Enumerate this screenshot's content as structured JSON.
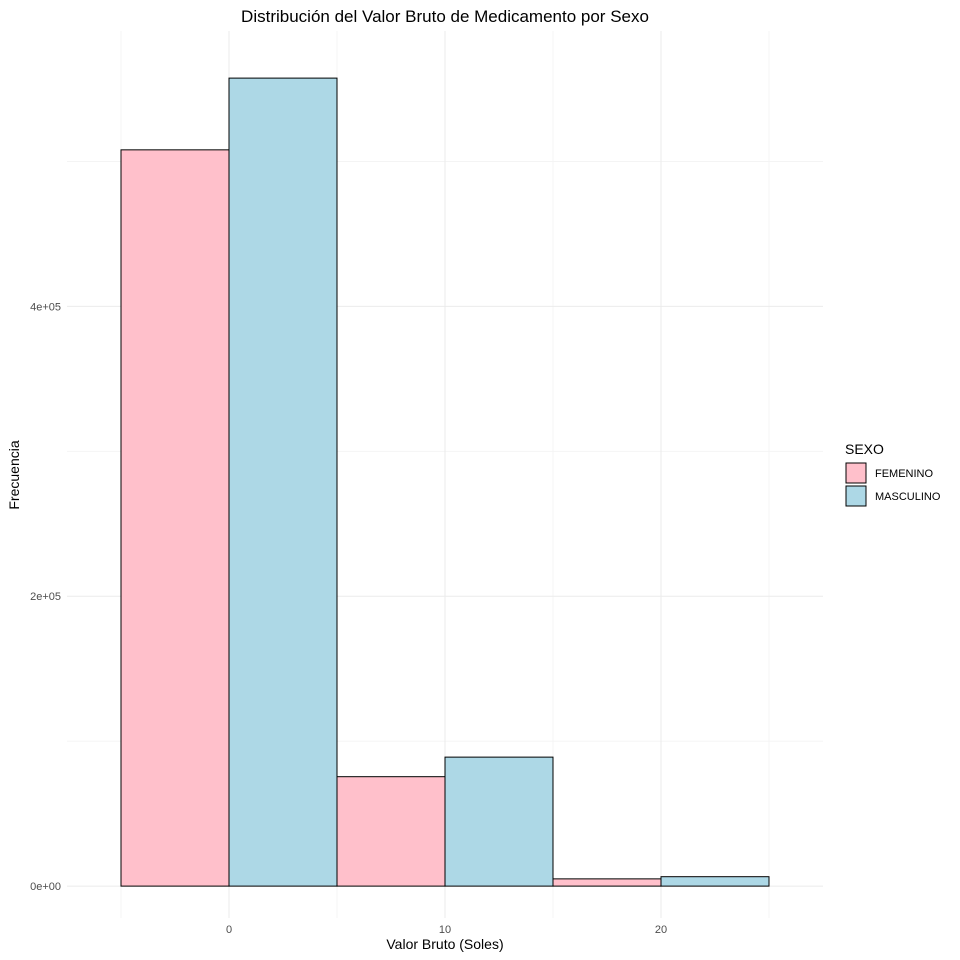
{
  "chart_data": {
    "type": "bar",
    "title": "Distribución del Valor Bruto de Medicamento por Sexo",
    "xlabel": "Valor Bruto (Soles)",
    "ylabel": "Frecuencia",
    "xlim": [
      -7.5,
      27.5
    ],
    "ylim": [
      -22000,
      590000
    ],
    "x_ticks": [
      0,
      10,
      20
    ],
    "x_tick_labels": [
      "0",
      "10",
      "20"
    ],
    "y_ticks": [
      0,
      200000,
      400000
    ],
    "y_tick_labels": [
      "0e+00",
      "2e+05",
      "4e+05"
    ],
    "grid": true,
    "legend_title": "SEXO",
    "legend_position": "right",
    "bin_width": 5,
    "series": [
      {
        "name": "FEMENINO",
        "color": "#ffc0cb",
        "bins": [
          {
            "x0": -5,
            "x1": 0,
            "value": 508000
          },
          {
            "x0": 5,
            "x1": 10,
            "value": 75500
          },
          {
            "x0": 15,
            "x1": 20,
            "value": 5000
          }
        ]
      },
      {
        "name": "MASCULINO",
        "color": "#add8e6",
        "bins": [
          {
            "x0": 0,
            "x1": 5,
            "value": 557500
          },
          {
            "x0": 10,
            "x1": 15,
            "value": 89000
          },
          {
            "x0": 20,
            "x1": 25,
            "value": 6500
          }
        ]
      }
    ]
  }
}
